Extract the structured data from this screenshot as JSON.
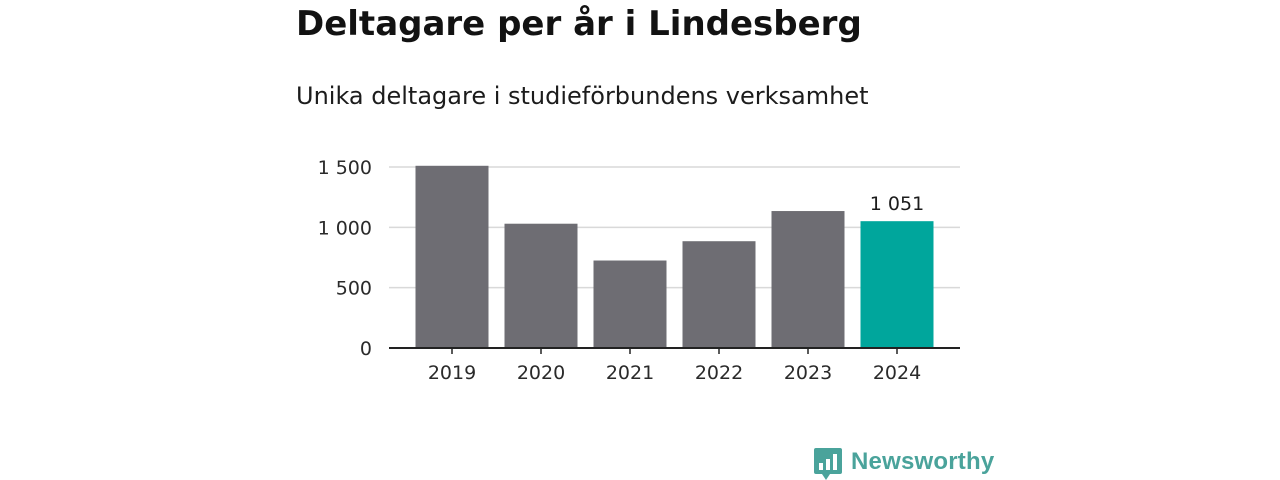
{
  "title": "Deltagare per år i Lindesberg",
  "subtitle": "Unika deltagare i studieförbundens verksamhet",
  "brand": {
    "name": "Newsworthy",
    "icon": "newsworthy-logo-icon",
    "color": "#4aa39b"
  },
  "chart_data": {
    "type": "bar",
    "categories": [
      "2019",
      "2020",
      "2021",
      "2022",
      "2023",
      "2024"
    ],
    "values": [
      1510,
      1030,
      725,
      885,
      1135,
      1051
    ],
    "ylim": [
      0,
      1500
    ],
    "yticks": [
      0,
      500,
      1000,
      1500
    ],
    "ytick_labels": [
      "0",
      "500",
      "1 000",
      "1 500"
    ],
    "grid": true,
    "highlight_index": 5,
    "highlight_label": "1 051",
    "bar_color": "#6e6d73",
    "highlight_color": "#00a69c"
  }
}
